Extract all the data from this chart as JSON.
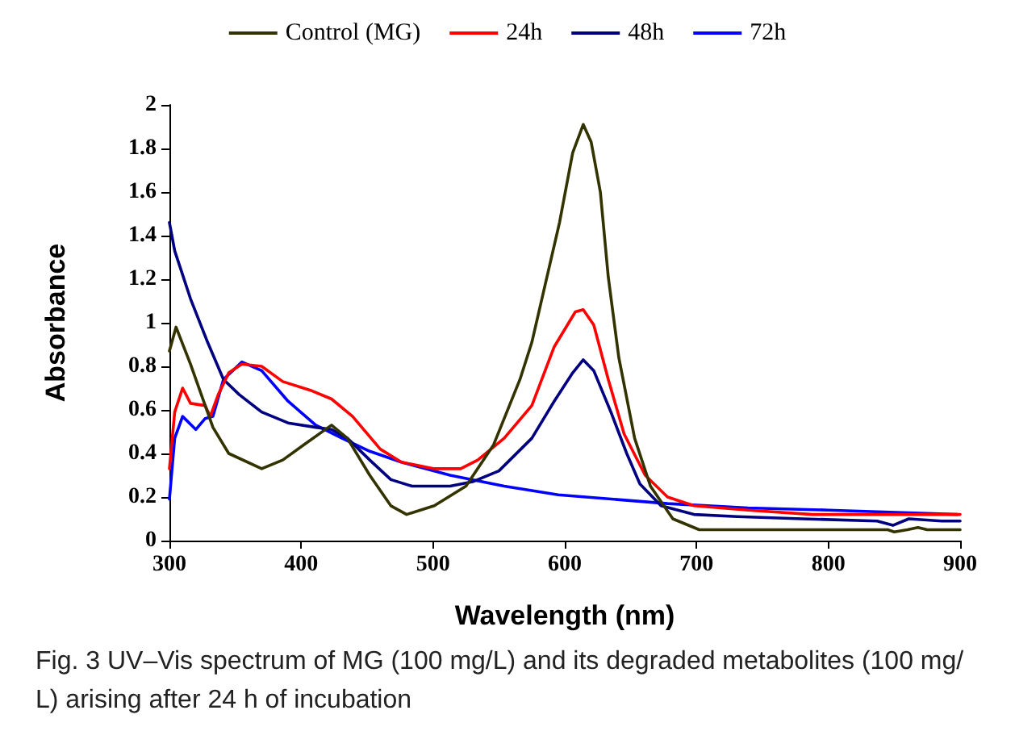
{
  "chart_data": {
    "type": "line",
    "xlabel": "Wavelength (nm)",
    "ylabel": "Absorbance",
    "xlim": [
      300,
      900
    ],
    "ylim": [
      0,
      2
    ],
    "xticks": [
      300,
      400,
      500,
      600,
      700,
      800,
      900
    ],
    "yticks": [
      0,
      0.2,
      0.4,
      0.6,
      0.8,
      1,
      1.2,
      1.4,
      1.6,
      1.8,
      2
    ],
    "grid": false,
    "legend": "top",
    "marker": "none",
    "line_style": "solid",
    "annotations": [
      "Fig. 3 UV–Vis spectrum of MG (100 mg/L) and its degraded metabolites (100 mg/L) arising after 24 h of incubation"
    ],
    "series": [
      {
        "name": "Control (MG)",
        "color": "#333300",
        "x": [
          300,
          305,
          316,
          333,
          345,
          370,
          386,
          402,
          423,
          435,
          452,
          468,
          480,
          501,
          525,
          546,
          566,
          575,
          596,
          606,
          614,
          620,
          627,
          633,
          641,
          653,
          665,
          682,
          702,
          750,
          800,
          845,
          850,
          860,
          868,
          875,
          900
        ],
        "values": [
          0.87,
          0.98,
          0.81,
          0.52,
          0.4,
          0.33,
          0.37,
          0.44,
          0.53,
          0.47,
          0.3,
          0.16,
          0.12,
          0.16,
          0.25,
          0.44,
          0.74,
          0.91,
          1.46,
          1.78,
          1.91,
          1.83,
          1.6,
          1.21,
          0.84,
          0.47,
          0.25,
          0.1,
          0.05,
          0.05,
          0.05,
          0.05,
          0.04,
          0.05,
          0.06,
          0.05,
          0.05
        ]
      },
      {
        "name": "24h",
        "color": "#ff0000",
        "x": [
          300,
          304,
          310,
          316,
          327,
          331,
          337,
          345,
          355,
          370,
          386,
          407,
          423,
          439,
          460,
          476,
          501,
          521,
          534,
          554,
          575,
          592,
          608,
          614,
          622,
          633,
          645,
          661,
          678,
          698,
          739,
          788,
          886,
          900
        ],
        "values": [
          0.33,
          0.59,
          0.7,
          0.63,
          0.62,
          0.57,
          0.67,
          0.77,
          0.81,
          0.8,
          0.73,
          0.69,
          0.65,
          0.57,
          0.42,
          0.36,
          0.33,
          0.33,
          0.37,
          0.47,
          0.62,
          0.89,
          1.05,
          1.06,
          0.99,
          0.74,
          0.49,
          0.3,
          0.2,
          0.16,
          0.14,
          0.12,
          0.12,
          0.12
        ]
      },
      {
        "name": "48h",
        "color": "#000080",
        "x": [
          300,
          304,
          316,
          329,
          341,
          353,
          370,
          390,
          411,
          423,
          435,
          452,
          468,
          484,
          513,
          530,
          550,
          575,
          592,
          606,
          614,
          622,
          635,
          647,
          657,
          673,
          698,
          731,
          780,
          837,
          849,
          861,
          886,
          900
        ],
        "values": [
          1.46,
          1.33,
          1.11,
          0.91,
          0.74,
          0.67,
          0.59,
          0.54,
          0.52,
          0.51,
          0.47,
          0.37,
          0.28,
          0.25,
          0.25,
          0.27,
          0.32,
          0.47,
          0.64,
          0.77,
          0.83,
          0.78,
          0.59,
          0.4,
          0.26,
          0.16,
          0.12,
          0.11,
          0.1,
          0.09,
          0.07,
          0.1,
          0.09,
          0.09
        ]
      },
      {
        "name": "72h",
        "color": "#0000ff",
        "x": [
          300,
          304,
          310,
          320,
          327,
          333,
          341,
          355,
          370,
          390,
          411,
          431,
          452,
          476,
          513,
          554,
          595,
          616,
          678,
          739,
          800,
          898
        ],
        "values": [
          0.19,
          0.47,
          0.57,
          0.51,
          0.56,
          0.57,
          0.74,
          0.82,
          0.78,
          0.64,
          0.53,
          0.47,
          0.41,
          0.36,
          0.3,
          0.25,
          0.21,
          0.2,
          0.17,
          0.15,
          0.14,
          0.12
        ]
      }
    ]
  }
}
